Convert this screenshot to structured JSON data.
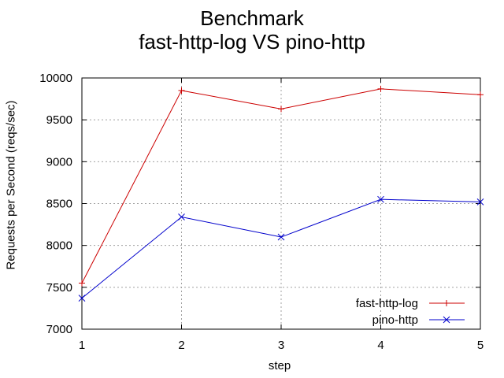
{
  "chart_data": {
    "type": "line",
    "title": [
      "Benchmark",
      "fast-http-log VS pino-http"
    ],
    "xlabel": "step",
    "ylabel": "Requests per Second (reqs/sec)",
    "x": [
      1,
      2,
      3,
      4,
      5
    ],
    "xlim": [
      1,
      5
    ],
    "ylim": [
      7000,
      10000
    ],
    "xticks": [
      1,
      2,
      3,
      4,
      5
    ],
    "yticks": [
      7000,
      7500,
      8000,
      8500,
      9000,
      9500,
      10000
    ],
    "grid": true,
    "legend_position": "bottom-right",
    "series": [
      {
        "name": "fast-http-log",
        "color": "#cc0000",
        "marker": "plus",
        "values": [
          7550,
          9850,
          9630,
          9870,
          9800
        ]
      },
      {
        "name": "pino-http",
        "color": "#0000cc",
        "marker": "cross",
        "values": [
          7370,
          8340,
          8100,
          8550,
          8520
        ]
      }
    ]
  }
}
